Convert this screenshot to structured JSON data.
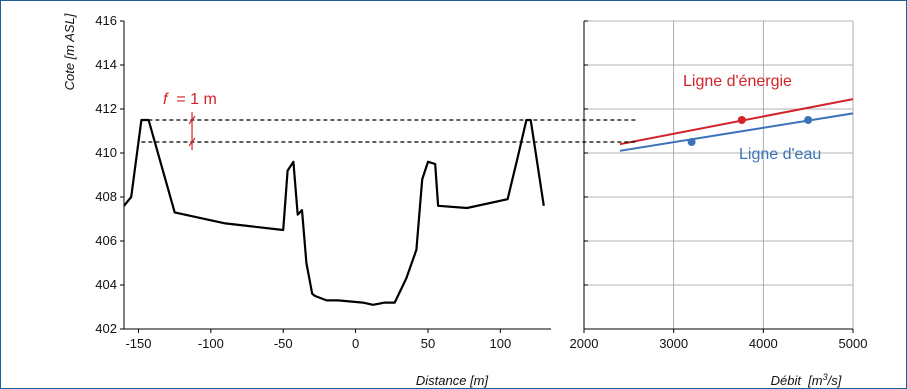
{
  "chart_data": [
    {
      "type": "line",
      "xlabel": "Distance [m]",
      "ylabel": "Cote [m ASL]",
      "xlim": [
        -160,
        135
      ],
      "ylim": [
        402,
        416
      ],
      "xticks": [
        "-150",
        "-100",
        "-50",
        "0",
        "50",
        "100"
      ],
      "xtick_values": [
        -150,
        -100,
        -50,
        0,
        50,
        100
      ],
      "yticks": [
        "402",
        "404",
        "406",
        "408",
        "410",
        "412",
        "414",
        "416"
      ],
      "ytick_values": [
        402,
        404,
        406,
        408,
        410,
        412,
        414,
        416
      ],
      "grid": false,
      "series": [
        {
          "color": "#000000",
          "x": [
            -160,
            -155,
            -148,
            -143,
            -125,
            -90,
            -50,
            -47,
            -43,
            -40,
            -37,
            -34,
            -30,
            -28,
            -20,
            -12,
            5,
            12,
            20,
            27,
            35,
            42,
            46,
            50,
            55,
            57,
            77,
            105,
            112,
            118,
            121,
            130
          ],
          "y": [
            407.6,
            408.0,
            411.5,
            411.5,
            407.3,
            406.8,
            406.5,
            409.2,
            409.6,
            407.2,
            407.4,
            405.0,
            403.6,
            403.5,
            403.3,
            403.3,
            403.2,
            403.1,
            403.2,
            403.2,
            404.3,
            405.6,
            408.8,
            409.6,
            409.5,
            407.6,
            407.5,
            407.9,
            409.8,
            411.5,
            411.5,
            407.6
          ]
        }
      ],
      "reference_lines": [
        {
          "y": 411.5,
          "style": "dashed",
          "color": "#000000"
        },
        {
          "y": 410.5,
          "style": "dashed",
          "color": "#000000"
        }
      ],
      "annotations": [
        {
          "text": "f  = 1 m",
          "color": "#d2232a",
          "x": -113,
          "y_from": 410.5,
          "y_to": 411.5
        }
      ]
    },
    {
      "type": "line",
      "xlabel": "Débit  [m3/s]",
      "xlim": [
        2000,
        5000
      ],
      "ylim": [
        402,
        416
      ],
      "xticks": [
        "2000",
        "3000",
        "4000",
        "5000"
      ],
      "xtick_values": [
        2000,
        3000,
        4000,
        5000
      ],
      "yticks": [],
      "grid": true,
      "gridlines_y": [
        402,
        404,
        406,
        408,
        410,
        412,
        414,
        416
      ],
      "gridlines_x": [
        2000,
        3000,
        4000,
        5000
      ],
      "series": [
        {
          "name": "Ligne d'énergie",
          "color": "#d2232a",
          "x": [
            2400,
            5000
          ],
          "y": [
            410.4,
            412.45
          ],
          "points_x": [
            3760
          ],
          "points_y": [
            411.5
          ]
        },
        {
          "name": "Ligne d'eau",
          "color": "#3a73b8",
          "x": [
            2400,
            5000
          ],
          "y": [
            410.1,
            411.8
          ],
          "points_x": [
            3200,
            4500
          ],
          "points_y": [
            410.5,
            411.5
          ]
        }
      ],
      "reference_lines": [
        {
          "y": 411.5,
          "style": "dashed",
          "color": "#000000"
        },
        {
          "y": 410.5,
          "style": "dashed",
          "color": "#000000"
        }
      ]
    }
  ],
  "legend_labels": {
    "energy": "Ligne d'énergie",
    "water": "Ligne d'eau"
  },
  "colors": {
    "frame": "#1f5f9a",
    "profile": "#000000",
    "energy": "#d2232a",
    "water": "#3a73b8",
    "grid": "#9a9a9a"
  }
}
